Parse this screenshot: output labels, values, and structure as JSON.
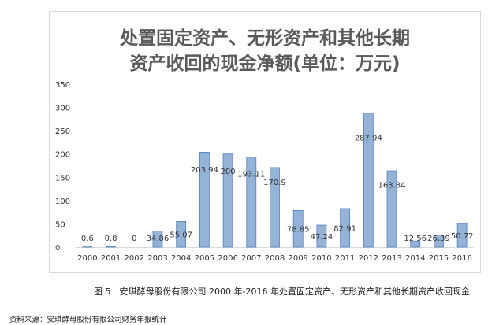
{
  "chart_data": {
    "type": "bar",
    "title_line1": "处置固定资产、无形资产和其他长期",
    "title_line2": "资产收回的现金净额(单位：万元)",
    "categories": [
      "2000",
      "2001",
      "2002",
      "2003",
      "2004",
      "2005",
      "2006",
      "2007",
      "2008",
      "2009",
      "2010",
      "2011",
      "2012",
      "2013",
      "2014",
      "2015",
      "2016"
    ],
    "values": [
      0.6,
      0.8,
      0,
      34.86,
      55.07,
      203.94,
      200,
      193.11,
      170.9,
      78.85,
      47.24,
      82.91,
      287.94,
      163.84,
      12.56,
      26.39,
      50.72
    ],
    "data_labels": [
      "0.6",
      "0.8",
      "0",
      "34.86",
      "55.07",
      "203.94",
      "200",
      "193.11",
      "170.9",
      "78.85",
      "47.24",
      "82.91",
      "287.94",
      "163.84",
      "12.56",
      "26.39",
      "50.72"
    ],
    "yticks": [
      "0",
      "50",
      "100",
      "150",
      "200",
      "250",
      "300",
      "350"
    ],
    "ylim": [
      0,
      350
    ],
    "grid": false,
    "legend": "none",
    "bar_color": "#95b3d7",
    "bar_edge_color": "#4f81bd"
  },
  "caption": "图 5　安琪酵母股份有限公司 2000 年-2016 年处置固定资产、无形资产和其他长期资产收回现金",
  "source": "资料来源：安琪酵母股份有限公司财务年报统计"
}
